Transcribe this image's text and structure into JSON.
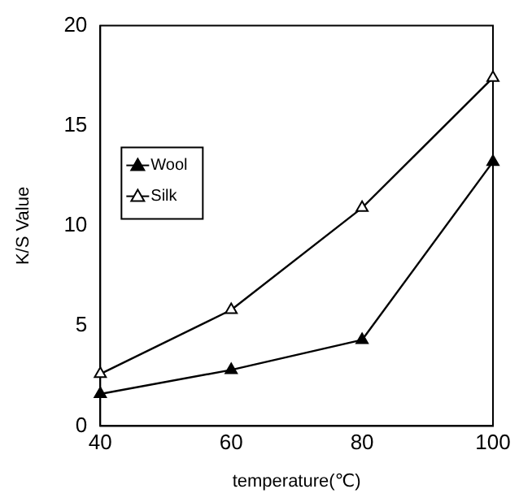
{
  "chart_data": {
    "type": "line",
    "xlabel": "temperature(℃)",
    "ylabel": "K/S Value",
    "x": [
      40,
      60,
      80,
      100
    ],
    "series": [
      {
        "name": "Wool",
        "color": "#000000",
        "values": [
          1.6,
          2.8,
          4.3,
          13.2
        ]
      },
      {
        "name": "Silk",
        "color": "#000000",
        "values": [
          2.6,
          5.8,
          10.9,
          17.4
        ]
      }
    ],
    "xlim": [
      40,
      100
    ],
    "xticks": [
      40,
      60,
      80,
      100
    ],
    "ylim": [
      0,
      20
    ],
    "yticks": [
      0,
      5,
      10,
      15,
      20
    ],
    "grid": false,
    "legend": "top left",
    "marker": "triangle",
    "line_style": "solid"
  }
}
